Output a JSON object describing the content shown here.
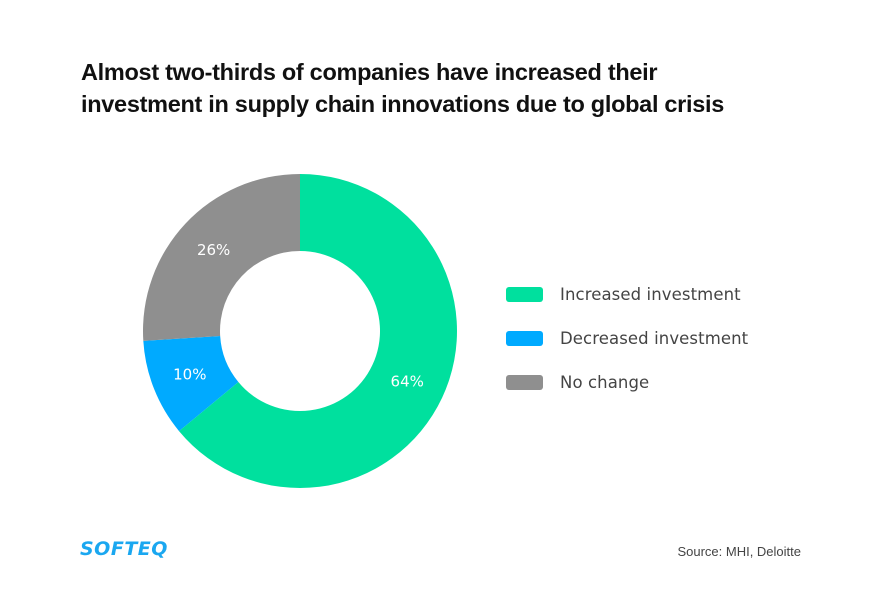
{
  "chart_data": {
    "type": "pie",
    "variant": "donut",
    "title": "Almost two-thirds of companies have increased their investment in supply chain innovations due to global crisis",
    "title_lines": [
      "Almost two-thirds of companies have increased their",
      "investment in supply chain innovations due to global crisis"
    ],
    "start_angle_deg": 0,
    "direction": "clockwise",
    "slices": [
      {
        "name": "Increased investment",
        "value": 64,
        "label": "64%",
        "color": "#00e09e"
      },
      {
        "name": "Decreased investment",
        "value": 10,
        "label": "10%",
        "color": "#00aaff"
      },
      {
        "name": "No change",
        "value": 26,
        "label": "26%",
        "color": "#8f8f8f"
      }
    ],
    "legend_position": "right"
  },
  "branding": {
    "logo_text": "SOFTEQ",
    "logo_color": "#1aa7f0"
  },
  "source": "Source: MHI, Deloitte"
}
